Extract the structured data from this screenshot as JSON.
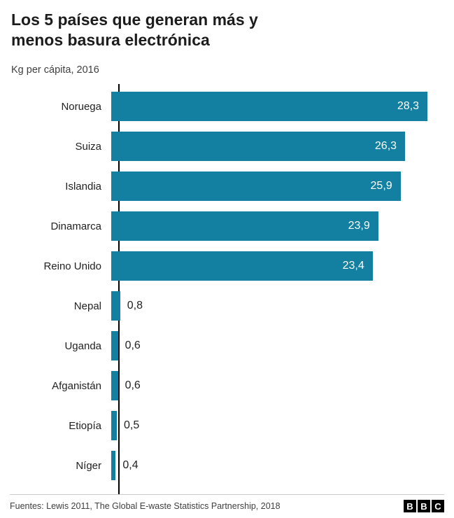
{
  "header": {
    "title_line1": "Los 5 países que generan más y",
    "title_line2": "menos basura electrónica",
    "subtitle": "Kg per cápita, 2016"
  },
  "chart_data": {
    "type": "bar",
    "orientation": "horizontal",
    "title": "Los 5 países que generan más y menos basura electrónica",
    "subtitle": "Kg per cápita, 2016",
    "xlabel": "",
    "ylabel": "",
    "xlim": [
      0,
      28.3
    ],
    "unit": "Kg per cápita",
    "bar_color": "#1380A1",
    "grid": false,
    "legend": "none",
    "categories": [
      "Noruega",
      "Suiza",
      "Islandia",
      "Dinamarca",
      "Reino Unido",
      "Nepal",
      "Uganda",
      "Afganistán",
      "Etiopía",
      "Níger"
    ],
    "values": [
      28.3,
      26.3,
      25.9,
      23.9,
      23.4,
      0.8,
      0.6,
      0.6,
      0.5,
      0.4
    ],
    "value_labels": [
      "28,3",
      "26,3",
      "25,9",
      "23,9",
      "23,4",
      "0,8",
      "0,6",
      "0,6",
      "0,5",
      "0,4"
    ]
  },
  "footer": {
    "source": "Fuentes: Lewis 2011, The Global E-waste Statistics Partnership, 2018",
    "logo_letters": [
      "B",
      "B",
      "C"
    ]
  }
}
